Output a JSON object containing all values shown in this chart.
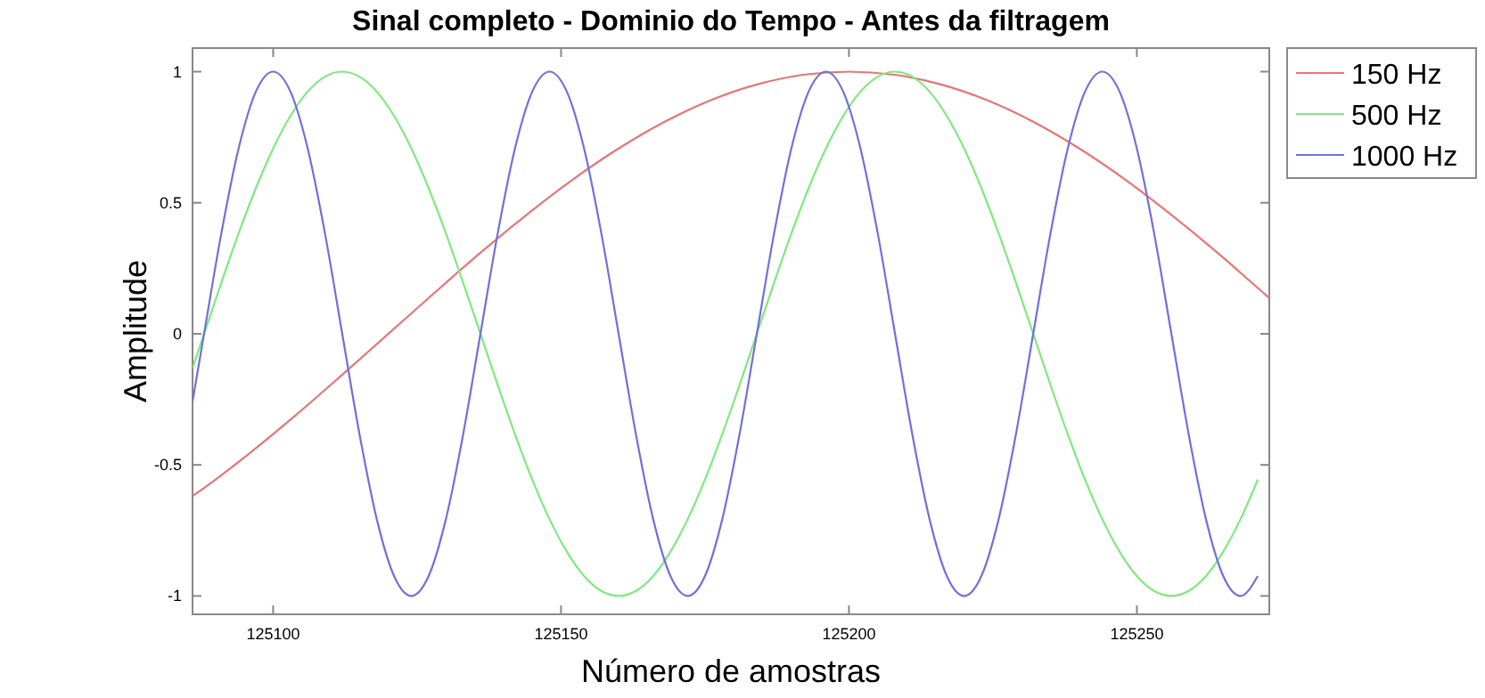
{
  "chart_data": {
    "type": "line",
    "title": "Sinal completo - Dominio do Tempo - Antes da filtragem",
    "xlabel": "Número de amostras",
    "ylabel": "Amplitude",
    "xlim": [
      125086,
      125273
    ],
    "ylim": [
      -1.07,
      1.09
    ],
    "xticks": [
      125100,
      125150,
      125200,
      125250
    ],
    "yticks": [
      -1,
      -0.5,
      0,
      0.5,
      1
    ],
    "grid": false,
    "legend": "top right",
    "line_style": "solid",
    "marker": "none",
    "x": [
      125086,
      125088,
      125091,
      125094,
      125097,
      125100,
      125103,
      125106,
      125109,
      125112,
      125115,
      125118,
      125121,
      125124,
      125127,
      125130,
      125133,
      125136,
      125139,
      125142,
      125145,
      125148,
      125151,
      125154,
      125157,
      125160,
      125163,
      125166,
      125169,
      125172,
      125175,
      125178,
      125181,
      125184,
      125187,
      125190,
      125193,
      125196,
      125199,
      125202,
      125205,
      125208,
      125211,
      125214,
      125217,
      125220,
      125223,
      125226,
      125229,
      125232,
      125235,
      125238,
      125241,
      125244,
      125247,
      125250,
      125253,
      125256,
      125259,
      125262,
      125265,
      125268,
      125271
    ],
    "series": [
      {
        "name": "150 Hz",
        "color": "#e87474",
        "x": [
          125086,
          125088,
          125096,
          125104,
          125112,
          125120,
          125128,
          125136,
          125144,
          125152,
          125160,
          125168,
          125176,
          125184,
          125192,
          125200,
          125208,
          125216,
          125224,
          125232,
          125240,
          125248,
          125256,
          125264,
          125272,
          125273
        ],
        "values": [
          -0.619,
          -0.588,
          -0.454,
          -0.309,
          -0.156,
          0,
          0.156,
          0.309,
          0.454,
          0.588,
          0.707,
          0.809,
          0.891,
          0.951,
          0.988,
          1,
          0.988,
          0.951,
          0.891,
          0.809,
          0.707,
          0.588,
          0.454,
          0.309,
          0.156,
          0.137
        ]
      },
      {
        "name": "500 Hz",
        "color": "#80e880",
        "values": [
          -0.131,
          0,
          0.195,
          0.383,
          0.556,
          0.707,
          0.831,
          0.924,
          0.981,
          1,
          0.981,
          0.924,
          0.831,
          0.707,
          0.556,
          0.383,
          0.195,
          0,
          -0.195,
          -0.383,
          -0.556,
          -0.707,
          -0.831,
          -0.924,
          -0.981,
          -1,
          -0.981,
          -0.924,
          -0.831,
          -0.707,
          -0.556,
          -0.383,
          -0.195,
          0,
          0.195,
          0.383,
          0.556,
          0.707,
          0.831,
          0.924,
          0.981,
          1,
          0.981,
          0.924,
          0.831,
          0.707,
          0.556,
          0.383,
          0.195,
          0,
          -0.195,
          -0.383,
          -0.556,
          -0.707,
          -0.831,
          -0.924,
          -0.981,
          -1,
          -0.981,
          -0.924,
          -0.831,
          -0.707,
          -0.556
        ]
      },
      {
        "name": "1000 Hz",
        "color": "#7070dc",
        "values": [
          -0.259,
          0,
          0.383,
          0.707,
          0.924,
          1,
          0.924,
          0.707,
          0.383,
          0,
          -0.383,
          -0.707,
          -0.924,
          -1,
          -0.924,
          -0.707,
          -0.383,
          0,
          0.383,
          0.707,
          0.924,
          1,
          0.924,
          0.707,
          0.383,
          0,
          -0.383,
          -0.707,
          -0.924,
          -1,
          -0.924,
          -0.707,
          -0.383,
          0,
          0.383,
          0.707,
          0.924,
          1,
          0.924,
          0.707,
          0.383,
          0,
          -0.383,
          -0.707,
          -0.924,
          -1,
          -0.924,
          -0.707,
          -0.383,
          0,
          0.383,
          0.707,
          0.924,
          1,
          0.924,
          0.707,
          0.383,
          0,
          -0.383,
          -0.707,
          -0.924,
          -1,
          -0.924
        ]
      }
    ]
  }
}
